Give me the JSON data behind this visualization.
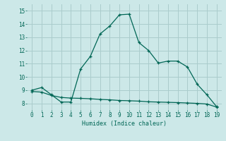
{
  "xlabel": "Humidex (Indice chaleur)",
  "background_color": "#cce8e8",
  "grid_color": "#aacccc",
  "line_color": "#006655",
  "xlim": [
    -0.5,
    19.5
  ],
  "ylim": [
    7.5,
    15.5
  ],
  "xticks": [
    0,
    1,
    2,
    3,
    4,
    5,
    6,
    7,
    8,
    9,
    10,
    11,
    12,
    13,
    14,
    15,
    16,
    17,
    18,
    19
  ],
  "yticks": [
    8,
    9,
    10,
    11,
    12,
    13,
    14,
    15
  ],
  "line1_x": [
    0,
    1,
    2,
    3,
    4,
    5,
    6,
    7,
    8,
    9,
    10,
    11,
    12,
    13,
    14,
    15,
    16,
    17,
    18,
    19
  ],
  "line1_y": [
    9.0,
    9.2,
    8.65,
    8.1,
    8.1,
    10.6,
    11.55,
    13.25,
    13.85,
    14.7,
    14.75,
    12.6,
    12.0,
    11.05,
    11.2,
    11.2,
    10.75,
    9.45,
    8.65,
    7.75
  ],
  "line2_x": [
    0,
    1,
    2,
    3,
    4,
    5,
    6,
    7,
    8,
    9,
    10,
    11,
    12,
    13,
    14,
    15,
    16,
    17,
    18,
    19
  ],
  "line2_y": [
    8.9,
    8.85,
    8.6,
    8.45,
    8.4,
    8.38,
    8.35,
    8.3,
    8.27,
    8.22,
    8.2,
    8.17,
    8.12,
    8.1,
    8.08,
    8.06,
    8.03,
    8.0,
    7.95,
    7.72
  ]
}
